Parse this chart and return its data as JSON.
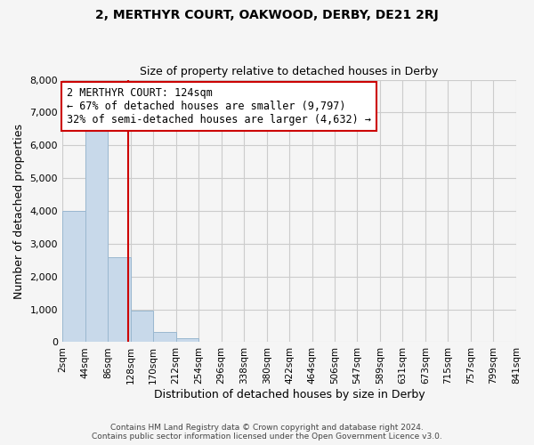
{
  "title": "2, MERTHYR COURT, OAKWOOD, DERBY, DE21 2RJ",
  "subtitle": "Size of property relative to detached houses in Derby",
  "xlabel": "Distribution of detached houses by size in Derby",
  "ylabel": "Number of detached properties",
  "footer_lines": [
    "Contains HM Land Registry data © Crown copyright and database right 2024.",
    "Contains public sector information licensed under the Open Government Licence v3.0."
  ],
  "bin_edges": [
    2,
    44,
    86,
    128,
    170,
    212,
    254,
    296,
    338,
    380,
    422,
    464,
    506,
    547,
    589,
    631,
    673,
    715,
    757,
    799,
    841
  ],
  "bar_heights": [
    4000,
    6600,
    2600,
    960,
    320,
    130,
    0,
    0,
    0,
    0,
    0,
    0,
    0,
    0,
    0,
    0,
    0,
    0,
    0,
    0
  ],
  "bar_color": "#c8d9ea",
  "bar_edgecolor": "#9ab8d0",
  "property_line_x": 124,
  "property_line_color": "#cc0000",
  "annotation_line1": "2 MERTHYR COURT: 124sqm",
  "annotation_line2": "← 67% of detached houses are smaller (9,797)",
  "annotation_line3": "32% of semi-detached houses are larger (4,632) →",
  "annotation_box_edgecolor": "#cc0000",
  "ylim": [
    0,
    8000
  ],
  "yticks": [
    0,
    1000,
    2000,
    3000,
    4000,
    5000,
    6000,
    7000,
    8000
  ],
  "grid_color": "#cccccc",
  "background_color": "#f5f5f5",
  "tick_labels": [
    "2sqm",
    "44sqm",
    "86sqm",
    "128sqm",
    "170sqm",
    "212sqm",
    "254sqm",
    "296sqm",
    "338sqm",
    "380sqm",
    "422sqm",
    "464sqm",
    "506sqm",
    "547sqm",
    "589sqm",
    "631sqm",
    "673sqm",
    "715sqm",
    "757sqm",
    "799sqm",
    "841sqm"
  ]
}
